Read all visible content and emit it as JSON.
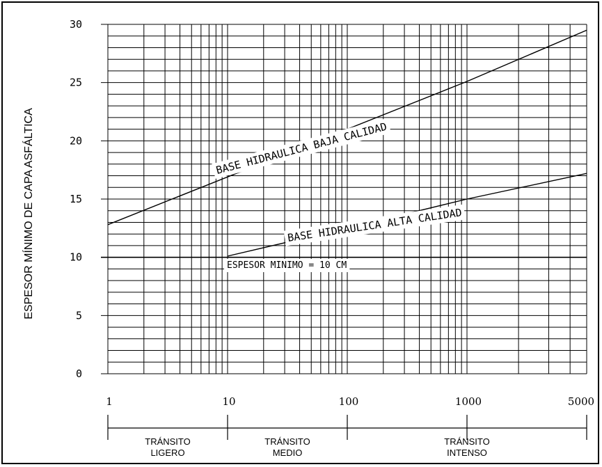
{
  "chart_data": {
    "type": "line",
    "ylabel": "ESPESOR MÍNIMO DE CAPA ASFÁLTICA",
    "xlabel": "",
    "x_scale": "log",
    "xlim": [
      1,
      5000
    ],
    "ylim": [
      0,
      30
    ],
    "x_ticks": [
      "1",
      "10",
      "100",
      "1000",
      "5000"
    ],
    "y_ticks": [
      "0",
      "5",
      "10",
      "15",
      "20",
      "25",
      "30"
    ],
    "grid": true,
    "series": [
      {
        "name": "BASE HIDRAULICA BAJA CALIDAD",
        "x": [
          1,
          10,
          100,
          1000,
          5000
        ],
        "y": [
          12.8,
          16.9,
          21.0,
          25.1,
          29.5
        ]
      },
      {
        "name": "BASE HIDRAULICA ALTA CALIDAD",
        "x": [
          10,
          100,
          1000,
          5000
        ],
        "y": [
          10.1,
          12.5,
          15.0,
          17.2
        ]
      }
    ],
    "annotations": [
      {
        "text": "ESPESOR MINIMO = 10 CM",
        "y": 10
      }
    ],
    "transit_ranges": [
      {
        "line1": "TRÁNSITO",
        "line2": "LIGERO",
        "x_from": 1,
        "x_to": 10
      },
      {
        "line1": "TRÁNSITO",
        "line2": "MEDIO",
        "x_from": 10,
        "x_to": 100
      },
      {
        "line1": "TRÁNSITO",
        "line2": "INTENSO",
        "x_from": 100,
        "x_to": 5000
      }
    ]
  }
}
